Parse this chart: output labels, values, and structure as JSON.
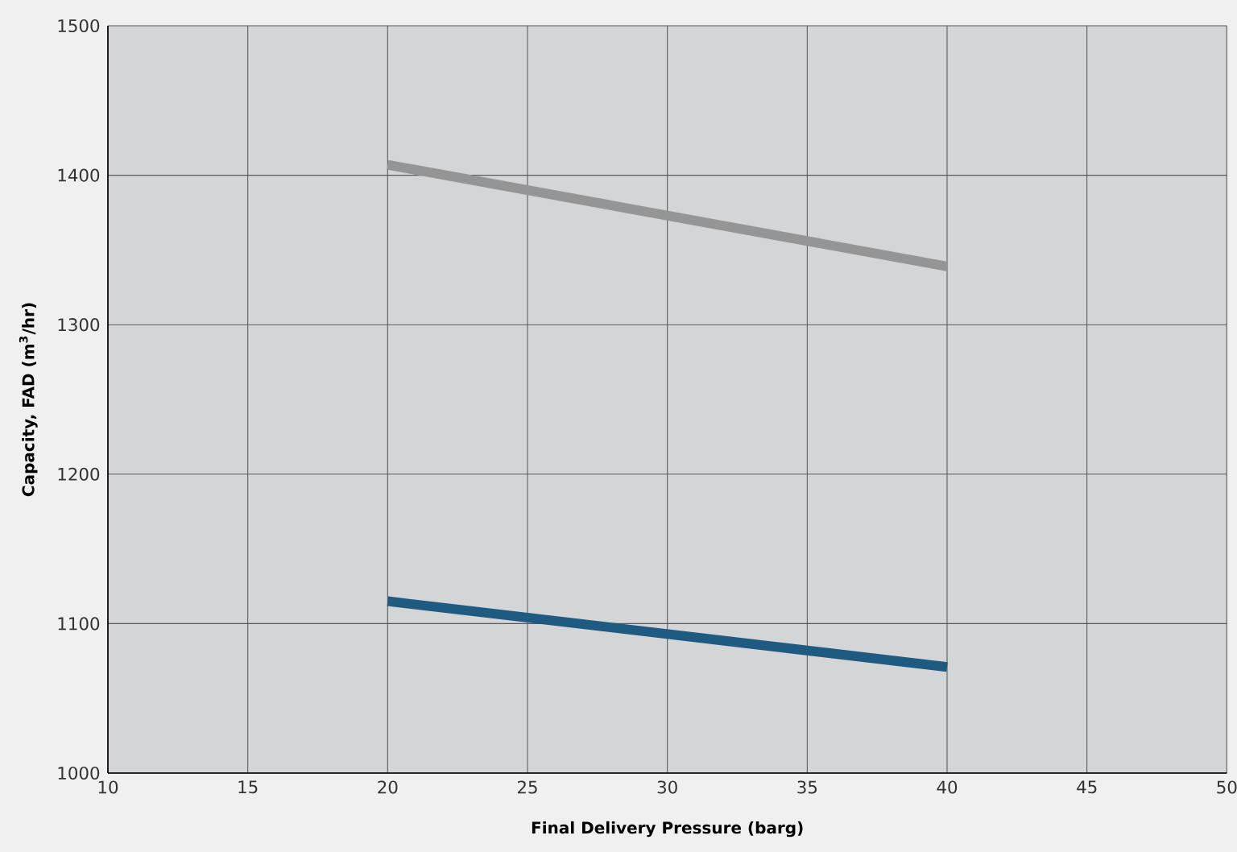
{
  "chart_data": {
    "type": "line",
    "xlabel": "Final Delivery Pressure (barg)",
    "ylabel": "Capacity, FAD (m$^{3}$/hr)",
    "xlim": [
      10,
      50
    ],
    "ylim": [
      1000,
      1500
    ],
    "xticks": [
      10,
      15,
      20,
      25,
      30,
      35,
      40,
      45,
      50
    ],
    "yticks": [
      1000,
      1100,
      1200,
      1300,
      1400,
      1500
    ],
    "grid": true,
    "x": [
      20,
      40
    ],
    "series": [
      {
        "color": "#959595",
        "values": [
          1407,
          1339
        ]
      },
      {
        "color": "#1f5a80",
        "values": [
          1115,
          1071
        ]
      }
    ]
  }
}
